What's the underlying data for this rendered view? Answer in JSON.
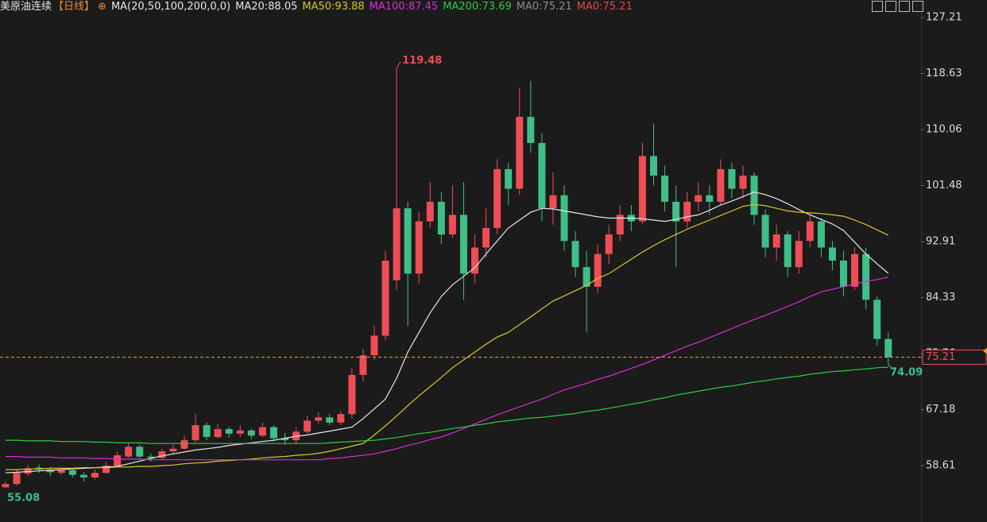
{
  "header": {
    "title": "美原油连续",
    "period": "【日线】",
    "indicator": "MA(20,50,100,200,0,0)",
    "extra_legend": [
      {
        "name": "MA0",
        "value": 75.21,
        "color": "#8c8c8c"
      },
      {
        "name": "MA0",
        "value": 75.21,
        "color": "#e8474f"
      }
    ]
  },
  "chart_data": {
    "type": "candlestick",
    "ylim": [
      49.98,
      129.89
    ],
    "yticks": [
      127.21,
      118.63,
      110.06,
      101.48,
      92.91,
      84.33,
      75.76,
      67.18,
      58.61
    ],
    "up_color": "#ef4d55",
    "down_color": "#3fbf87",
    "last_color": "#e8a040",
    "open": [
      55.3,
      55.8,
      57.4,
      58.3,
      58.0,
      57.5,
      57.9,
      57.2,
      56.8,
      57.5,
      58.6,
      60.0,
      61.5,
      60.0,
      59.8,
      60.8,
      61.2,
      62.5,
      64.8,
      63.0,
      64.2,
      63.5,
      64.0,
      63.2,
      64.5,
      62.8,
      62.5,
      63.8,
      65.5,
      66.0,
      65.2,
      66.5,
      72.5,
      75.5,
      78.5,
      87.0,
      98.0,
      88.0,
      96.0,
      99.0,
      94.0,
      97.0,
      88.0,
      92.0,
      95.0,
      104.0,
      101.0,
      112.0,
      108.0,
      98.0,
      100.0,
      93.0,
      89.0,
      86.0,
      91.0,
      94.0,
      97.0,
      96.0,
      106.0,
      103.0,
      99.0,
      96.0,
      99.0,
      100.0,
      99.0,
      104.0,
      101.0,
      103.0,
      97.0,
      92.0,
      94.0,
      89.0,
      93.0,
      96.0,
      92.0,
      90.0,
      86.0,
      91.0,
      84.0,
      78.0
    ],
    "high": [
      56.2,
      58.0,
      58.7,
      58.8,
      58.4,
      58.3,
      58.2,
      57.6,
      58.0,
      59.2,
      60.8,
      62.2,
      61.8,
      60.5,
      61.2,
      61.8,
      63.2,
      66.5,
      65.2,
      65.0,
      64.6,
      64.8,
      64.3,
      65.2,
      64.8,
      63.6,
      64.5,
      66.2,
      66.8,
      66.5,
      67.0,
      73.5,
      76.5,
      80.0,
      91.5,
      119.48,
      99.0,
      97.5,
      102.0,
      100.5,
      101.5,
      102.0,
      94.0,
      98.0,
      105.5,
      105.0,
      116.5,
      117.5,
      109.5,
      103.5,
      101.5,
      94.5,
      91.5,
      92.5,
      95.5,
      98.5,
      98.5,
      108.0,
      111.0,
      104.5,
      101.5,
      100.5,
      102.0,
      101.5,
      105.5,
      105.0,
      104.5,
      103.5,
      97.8,
      95.5,
      94.5,
      94.5,
      97.0,
      96.5,
      93.0,
      91.5,
      92.0,
      92.0,
      84.5,
      79.0
    ],
    "low": [
      55.08,
      55.6,
      57.0,
      57.5,
      57.0,
      57.2,
      56.8,
      56.2,
      56.5,
      57.3,
      58.4,
      59.8,
      59.6,
      59.2,
      59.5,
      60.3,
      61.0,
      62.2,
      62.5,
      62.8,
      62.9,
      63.0,
      62.7,
      63.0,
      62.3,
      61.8,
      62.0,
      63.5,
      65.0,
      64.8,
      64.8,
      65.8,
      71.5,
      74.8,
      77.8,
      85.5,
      80.0,
      86.5,
      95.0,
      92.5,
      93.5,
      84.0,
      86.5,
      90.5,
      94.0,
      98.5,
      100.0,
      106.5,
      96.0,
      95.5,
      91.5,
      87.5,
      79.0,
      85.0,
      89.5,
      93.0,
      94.5,
      95.5,
      101.5,
      97.5,
      89.0,
      95.0,
      97.5,
      97.0,
      98.5,
      99.5,
      99.5,
      95.5,
      90.5,
      90.0,
      87.5,
      88.0,
      92.0,
      90.5,
      88.5,
      84.5,
      85.5,
      82.5,
      77.0,
      74.09
    ],
    "close": [
      55.8,
      57.5,
      58.2,
      58.0,
      57.6,
      57.9,
      57.2,
      56.8,
      57.5,
      58.6,
      60.2,
      61.5,
      60.0,
      59.8,
      60.8,
      61.2,
      62.5,
      64.8,
      63.0,
      64.2,
      63.5,
      64.0,
      63.2,
      64.5,
      62.8,
      62.5,
      63.8,
      65.5,
      66.0,
      65.2,
      66.5,
      72.5,
      75.5,
      78.5,
      90.0,
      98.0,
      88.0,
      96.0,
      99.0,
      94.0,
      97.0,
      88.0,
      92.0,
      95.0,
      104.0,
      101.0,
      112.0,
      108.0,
      98.0,
      100.0,
      93.0,
      89.0,
      86.0,
      91.0,
      94.0,
      97.0,
      96.0,
      106.0,
      103.0,
      99.0,
      96.0,
      99.0,
      100.0,
      99.0,
      104.0,
      101.0,
      103.0,
      97.0,
      92.0,
      94.0,
      89.0,
      93.0,
      96.0,
      92.0,
      90.0,
      86.0,
      91.0,
      84.0,
      78.0,
      75.21
    ],
    "series": [
      {
        "name": "MA20",
        "color": "#e6e6e6",
        "values": [
          57.5,
          57.6,
          57.7,
          57.8,
          57.9,
          58.0,
          58.1,
          58.2,
          58.3,
          58.4,
          58.5,
          58.9,
          59.3,
          59.7,
          60.1,
          60.4,
          60.7,
          61.0,
          61.2,
          61.4,
          61.7,
          61.9,
          62.1,
          62.3,
          62.5,
          62.8,
          63.1,
          63.3,
          63.6,
          63.9,
          64.2,
          64.5,
          65.8,
          67.3,
          68.8,
          72.0,
          76.0,
          79.0,
          82.0,
          84.5,
          86.3,
          87.6,
          88.9,
          91.0,
          93.0,
          95.0,
          96.2,
          97.4,
          98.0,
          97.9,
          97.6,
          97.3,
          97.0,
          96.7,
          96.5,
          96.5,
          96.5,
          96.4,
          96.2,
          96.0,
          96.3,
          96.7,
          97.0,
          97.7,
          98.5,
          99.1,
          99.8,
          100.5,
          100.1,
          99.5,
          98.7,
          97.8,
          97.0,
          96.3,
          95.6,
          94.6,
          92.8,
          91.0,
          89.5,
          88.05
        ]
      },
      {
        "name": "MA50",
        "color": "#d8c82c",
        "values": [
          58.0,
          58.0,
          58.1,
          58.1,
          58.2,
          58.2,
          58.2,
          58.3,
          58.3,
          58.3,
          58.4,
          58.4,
          58.5,
          58.5,
          58.6,
          58.7,
          58.9,
          59.0,
          59.1,
          59.3,
          59.4,
          59.5,
          59.6,
          59.8,
          59.9,
          60.0,
          60.2,
          60.3,
          60.5,
          60.8,
          61.2,
          61.6,
          62.0,
          63.3,
          64.7,
          66.2,
          67.8,
          69.3,
          70.7,
          72.1,
          73.6,
          74.8,
          76.0,
          77.2,
          78.3,
          79.0,
          80.2,
          81.4,
          82.6,
          83.8,
          84.6,
          85.4,
          86.2,
          87.3,
          88.0,
          89.1,
          90.2,
          91.3,
          92.3,
          93.2,
          94.0,
          94.8,
          95.5,
          96.2,
          96.9,
          97.6,
          98.3,
          98.6,
          98.4,
          98.0,
          97.6,
          97.4,
          97.3,
          97.2,
          97.0,
          96.8,
          96.2,
          95.5,
          94.7,
          93.88
        ]
      },
      {
        "name": "MA100",
        "color": "#d92cd9",
        "values": [
          60.0,
          60.0,
          59.9,
          59.9,
          59.9,
          59.8,
          59.8,
          59.8,
          59.7,
          59.7,
          59.6,
          59.6,
          59.6,
          59.5,
          59.5,
          59.5,
          59.5,
          59.5,
          59.5,
          59.5,
          59.5,
          59.5,
          59.5,
          59.5,
          59.5,
          59.5,
          59.5,
          59.5,
          59.5,
          59.7,
          59.8,
          60.0,
          60.2,
          60.4,
          60.8,
          61.2,
          61.7,
          62.1,
          62.6,
          63.0,
          63.6,
          64.3,
          65.0,
          65.7,
          66.4,
          67.0,
          67.6,
          68.2,
          68.8,
          69.5,
          70.2,
          70.7,
          71.2,
          71.8,
          72.3,
          72.9,
          73.5,
          74.1,
          74.8,
          75.5,
          76.2,
          76.9,
          77.5,
          78.2,
          78.9,
          79.6,
          80.3,
          81.0,
          81.6,
          82.3,
          83.0,
          83.7,
          84.5,
          85.2,
          85.6,
          86.0,
          86.4,
          86.8,
          87.1,
          87.45
        ]
      },
      {
        "name": "MA200",
        "color": "#2ecc40",
        "values": [
          62.5,
          62.5,
          62.4,
          62.4,
          62.4,
          62.3,
          62.3,
          62.3,
          62.2,
          62.2,
          62.1,
          62.1,
          62.1,
          62.0,
          62.0,
          62.0,
          62.0,
          62.0,
          62.0,
          62.0,
          62.0,
          62.0,
          62.0,
          62.0,
          62.0,
          62.0,
          62.0,
          62.0,
          62.0,
          62.1,
          62.2,
          62.3,
          62.4,
          62.5,
          62.7,
          62.9,
          63.2,
          63.5,
          63.7,
          64.0,
          64.3,
          64.5,
          64.8,
          65.0,
          65.3,
          65.5,
          65.7,
          65.9,
          66.0,
          66.2,
          66.4,
          66.6,
          66.9,
          67.1,
          67.4,
          67.7,
          68.0,
          68.3,
          68.7,
          69.0,
          69.4,
          69.7,
          70.0,
          70.3,
          70.6,
          70.8,
          71.1,
          71.4,
          71.6,
          71.9,
          72.1,
          72.3,
          72.6,
          72.8,
          73.0,
          73.1,
          73.3,
          73.4,
          73.6,
          73.69
        ]
      }
    ]
  }
}
